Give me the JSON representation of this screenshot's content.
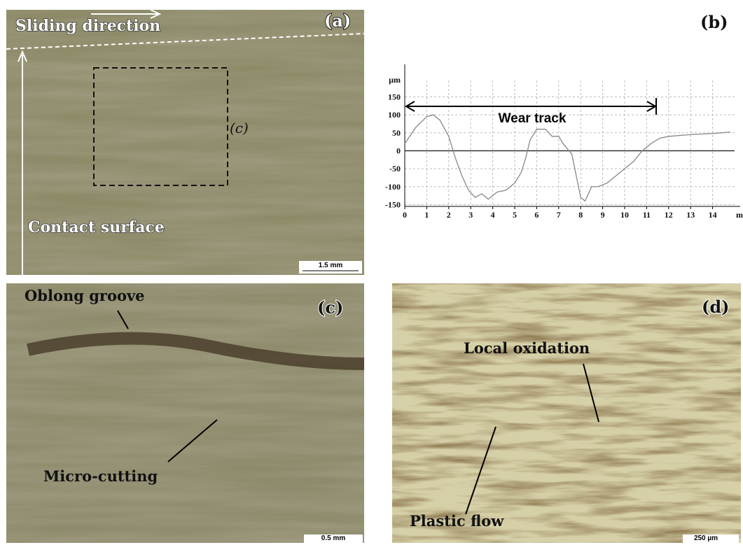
{
  "panel_a": {
    "label": "(a)",
    "sliding": "Sliding direction",
    "contact": "Contact surface",
    "inset": "(c)",
    "scale": "1.5 mm"
  },
  "chart_data": {
    "type": "line",
    "panel_label": "(b)",
    "annotation": "Wear track",
    "x_label": "mm",
    "y_label": "µm",
    "x": [
      0,
      0.5,
      1,
      1.3,
      1.6,
      2,
      2.3,
      2.6,
      2.9,
      3.2,
      3.5,
      3.8,
      4.2,
      4.6,
      5,
      5.3,
      5.5,
      5.7,
      6,
      6.4,
      6.7,
      7,
      7.2,
      7.6,
      7.8,
      8,
      8.2,
      8.5,
      8.8,
      9.2,
      9.6,
      10,
      10.4,
      10.8,
      11.2,
      11.6,
      12,
      13,
      14,
      14.8
    ],
    "values": [
      20,
      65,
      95,
      100,
      85,
      40,
      -20,
      -70,
      -110,
      -130,
      -120,
      -135,
      -115,
      -110,
      -90,
      -60,
      -20,
      30,
      60,
      60,
      40,
      40,
      20,
      -10,
      -70,
      -130,
      -140,
      -100,
      -100,
      -90,
      -70,
      -50,
      -30,
      0,
      20,
      35,
      40,
      45,
      48,
      52
    ],
    "color": "#888888",
    "xlim": [
      0,
      15
    ],
    "ylim": [
      -155,
      225
    ],
    "xticks": [
      0,
      1,
      2,
      3,
      4,
      5,
      6,
      7,
      8,
      9,
      10,
      11,
      12,
      13,
      14
    ],
    "yticks": [
      -150,
      -100,
      -50,
      0,
      50,
      100,
      150
    ],
    "grid": true
  },
  "panel_c": {
    "label": "(c)",
    "groove": "Oblong groove",
    "cutting": "Micro-cutting",
    "scale": "0.5 mm"
  },
  "panel_d": {
    "label": "(d)",
    "oxidation": "Local oxidation",
    "flow": "Plastic flow",
    "scale": "250 µm"
  }
}
